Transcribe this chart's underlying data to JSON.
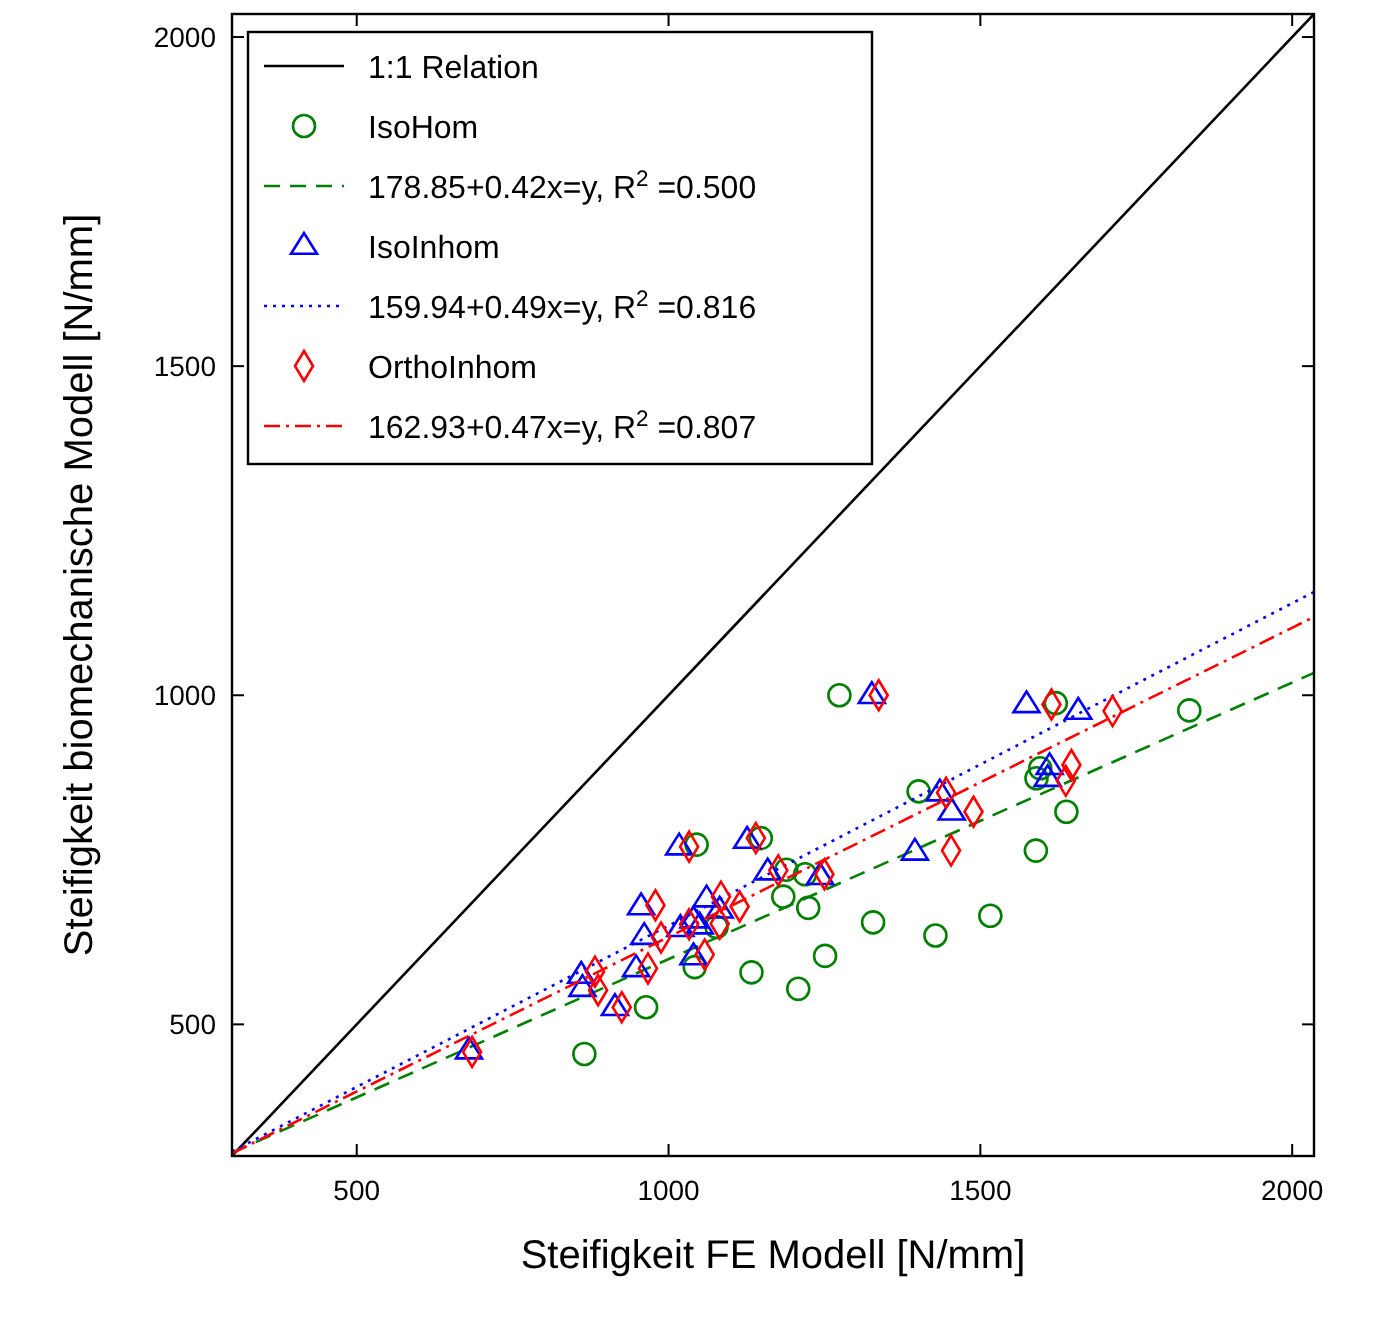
{
  "chart_data": {
    "type": "scatter",
    "xlabel": "Steifigkeit FE Modell [N/mm]",
    "ylabel": "Steifigkeit biomechanische Modell [N/mm]",
    "xlim": [
      300,
      2035
    ],
    "ylim": [
      300,
      2035
    ],
    "xticks": [
      500,
      1000,
      1500,
      2000
    ],
    "yticks": [
      500,
      1000,
      1500,
      2000
    ],
    "grid": false,
    "legend": "top left",
    "series": [
      {
        "name": "1:1 Relation",
        "type": "line",
        "color": "#000000",
        "line_style": "solid",
        "marker": "none",
        "x": [
          300,
          2035
        ],
        "values": [
          300,
          2035
        ]
      },
      {
        "name": "IsoHom",
        "color": "#008000",
        "marker": "circle",
        "x": [
          1274,
          1621,
          1835,
          1401,
          1596,
          1590,
          1638,
          1589,
          1045,
          1148,
          1189,
          1219,
          1184,
          1224,
          1328,
          1428,
          1516,
          1251,
          1133,
          1208,
          1042,
          964,
          1077,
          865
        ],
        "values": [
          1000,
          988,
          977,
          854,
          889,
          874,
          823,
          764,
          773,
          783,
          735,
          728,
          694,
          677,
          655,
          635,
          665,
          604,
          579,
          554,
          587,
          526,
          648,
          455
        ]
      },
      {
        "name": "178.85+0.42x=y, R$^{2}$ =0.500",
        "type": "line",
        "color": "#008000",
        "line_style": "dashed",
        "marker": "none",
        "x": [
          300,
          2035
        ],
        "values": [
          305,
          1034
        ]
      },
      {
        "name": "IsoInhom",
        "color": "#0000ff",
        "marker": "triangle",
        "x": [
          1326,
          1574,
          1657,
          1611,
          1608,
          1435,
          1454,
          1395,
          1017,
          1126,
          1159,
          1243,
          956,
          1061,
          961,
          1019,
          1040,
          1050,
          1082,
          948,
          1040,
          914,
          860,
          862,
          680
        ],
        "values": [
          1000,
          986,
          976,
          892,
          874,
          852,
          823,
          762,
          770,
          780,
          732,
          725,
          679,
          691,
          634,
          646,
          659,
          650,
          674,
          585,
          603,
          526,
          575,
          555,
          460
        ]
      },
      {
        "name": "159.94+0.49x=y, R$^{2}$ =0.816",
        "type": "line",
        "color": "#0000ff",
        "line_style": "dotted",
        "marker": "none",
        "x": [
          300,
          2035
        ],
        "values": [
          307,
          1157
        ]
      },
      {
        "name": "OrthoInhom",
        "color": "#ff0000",
        "marker": "diamond",
        "x": [
          1337,
          1614,
          1712,
          1646,
          1637,
          1445,
          1489,
          1453,
          1033,
          1140,
          1176,
          1250,
          979,
          1084,
          1114,
          988,
          1033,
          1082,
          967,
          1058,
          925,
          882,
          887,
          685
        ],
        "values": [
          1000,
          986,
          976,
          894,
          870,
          852,
          823,
          764,
          770,
          783,
          734,
          728,
          681,
          694,
          679,
          632,
          652,
          653,
          585,
          606,
          526,
          580,
          552,
          458
        ]
      },
      {
        "name": "162.93+0.47x=y, R$^{2}$ =0.807",
        "type": "line",
        "color": "#ff0000",
        "line_style": "dashdot",
        "marker": "none",
        "x": [
          300,
          2035
        ],
        "values": [
          304,
          1119
        ]
      }
    ]
  }
}
